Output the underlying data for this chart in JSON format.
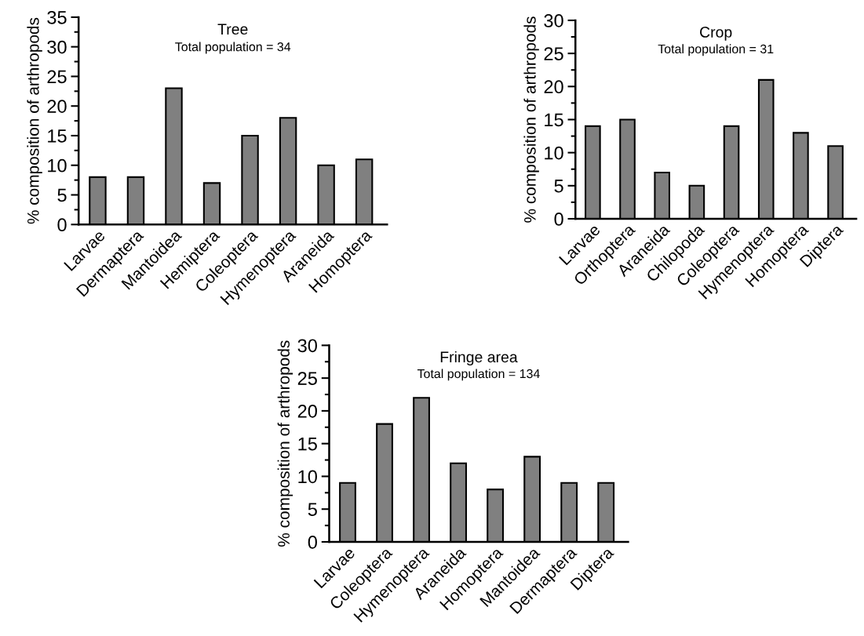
{
  "chart_data": [
    {
      "type": "bar",
      "title": "Tree",
      "subtitle": "Total population = 34",
      "ylabel": "% composition of arthropods",
      "categories": [
        "Larvae",
        "Dermaptera",
        "Mantoidea",
        "Hemiptera",
        "Coleoptera",
        "Hymenoptera",
        "Araneida",
        "Homoptera"
      ],
      "values": [
        8,
        8,
        23,
        7,
        15,
        18,
        10,
        11
      ],
      "color": "#808080",
      "ylim": [
        0,
        35
      ],
      "yticks": [
        0,
        5,
        10,
        15,
        20,
        25,
        30,
        35
      ]
    },
    {
      "type": "bar",
      "title": "Crop",
      "subtitle": "Total population = 31",
      "ylabel": "% composition of arthropods",
      "categories": [
        "Larvae",
        "Orthoptera",
        "Araneida",
        "Chilopoda",
        "Coleoptera",
        "Hymenoptera",
        "Homoptera",
        "Diptera"
      ],
      "values": [
        14,
        15,
        7,
        5,
        14,
        21,
        13,
        11
      ],
      "color": "#808080",
      "ylim": [
        0,
        30
      ],
      "yticks": [
        0,
        5,
        10,
        15,
        20,
        25,
        30
      ]
    },
    {
      "type": "bar",
      "title": "Fringe area",
      "subtitle": "Total population = 134",
      "ylabel": "% composition of arthropods",
      "categories": [
        "Larvae",
        "Coleoptera",
        "Hymenoptera",
        "Araneida",
        "Homoptera",
        "Mantoidea",
        "Dermaptera",
        "Diptera"
      ],
      "values": [
        9,
        18,
        22,
        12,
        8,
        13,
        9,
        9
      ],
      "color": "#808080",
      "ylim": [
        0,
        30
      ],
      "yticks": [
        0,
        5,
        10,
        15,
        20,
        25,
        30
      ]
    }
  ]
}
